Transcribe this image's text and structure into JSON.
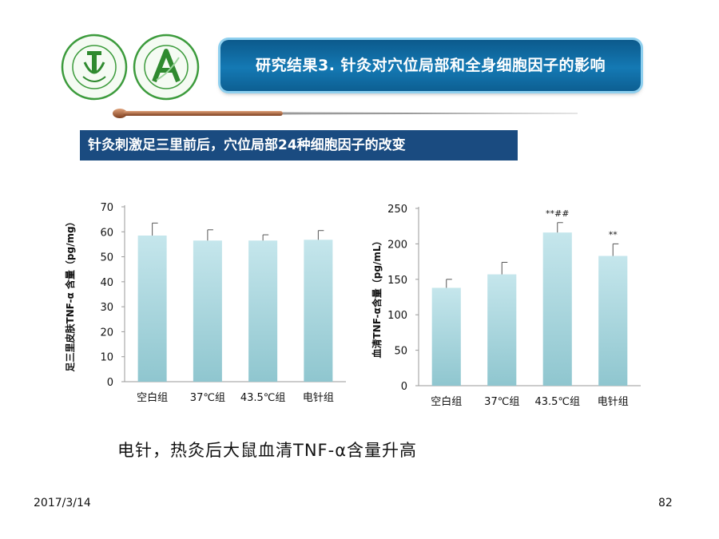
{
  "header": {
    "title": "研究结果3. 针灸对穴位局部和全身细胞因子的影响"
  },
  "logos": [
    {
      "name": "china-academy-cm-logo",
      "text": "中国中医科学院"
    },
    {
      "name": "acupuncture-institute-logo",
      "text": "中国中医科学院针灸研究所"
    }
  ],
  "subtitle": "针灸刺激足三里前后，穴位局部24种细胞因子的改变",
  "caption": "电针，热灸后大鼠血清TNF-α含量升高",
  "footer": {
    "date": "2017/3/14",
    "page": "82"
  },
  "colors": {
    "bar_fill_top": "#c5e6ec",
    "bar_fill_bottom": "#8fc6cf",
    "banner": "#1479b4",
    "subtitle_bg": "#1a4b80"
  },
  "chart_data": [
    {
      "type": "bar",
      "ylabel": "足三里皮肤TNF-α 含量（pg/mg）",
      "categories": [
        "空白组",
        "37℃组",
        "43.5℃组",
        "电针组"
      ],
      "values": [
        58.5,
        56.5,
        56.5,
        56.8
      ],
      "errors": [
        5.0,
        4.3,
        2.3,
        3.7
      ],
      "annotations": [
        "",
        "",
        "",
        ""
      ],
      "ylim": [
        0,
        70
      ],
      "yticks": [
        0,
        10,
        20,
        30,
        40,
        50,
        60,
        70
      ],
      "grid": false
    },
    {
      "type": "bar",
      "ylabel": "血清TNF-α含量（pg/mL）",
      "categories": [
        "空白组",
        "37℃组",
        "43.5℃组",
        "电针组"
      ],
      "values": [
        138,
        157,
        216,
        183
      ],
      "errors": [
        12,
        17,
        14,
        17
      ],
      "annotations": [
        "",
        "",
        "**##",
        "**"
      ],
      "ylim": [
        0,
        250
      ],
      "yticks": [
        0,
        50,
        100,
        150,
        200,
        250
      ],
      "grid": false
    }
  ]
}
